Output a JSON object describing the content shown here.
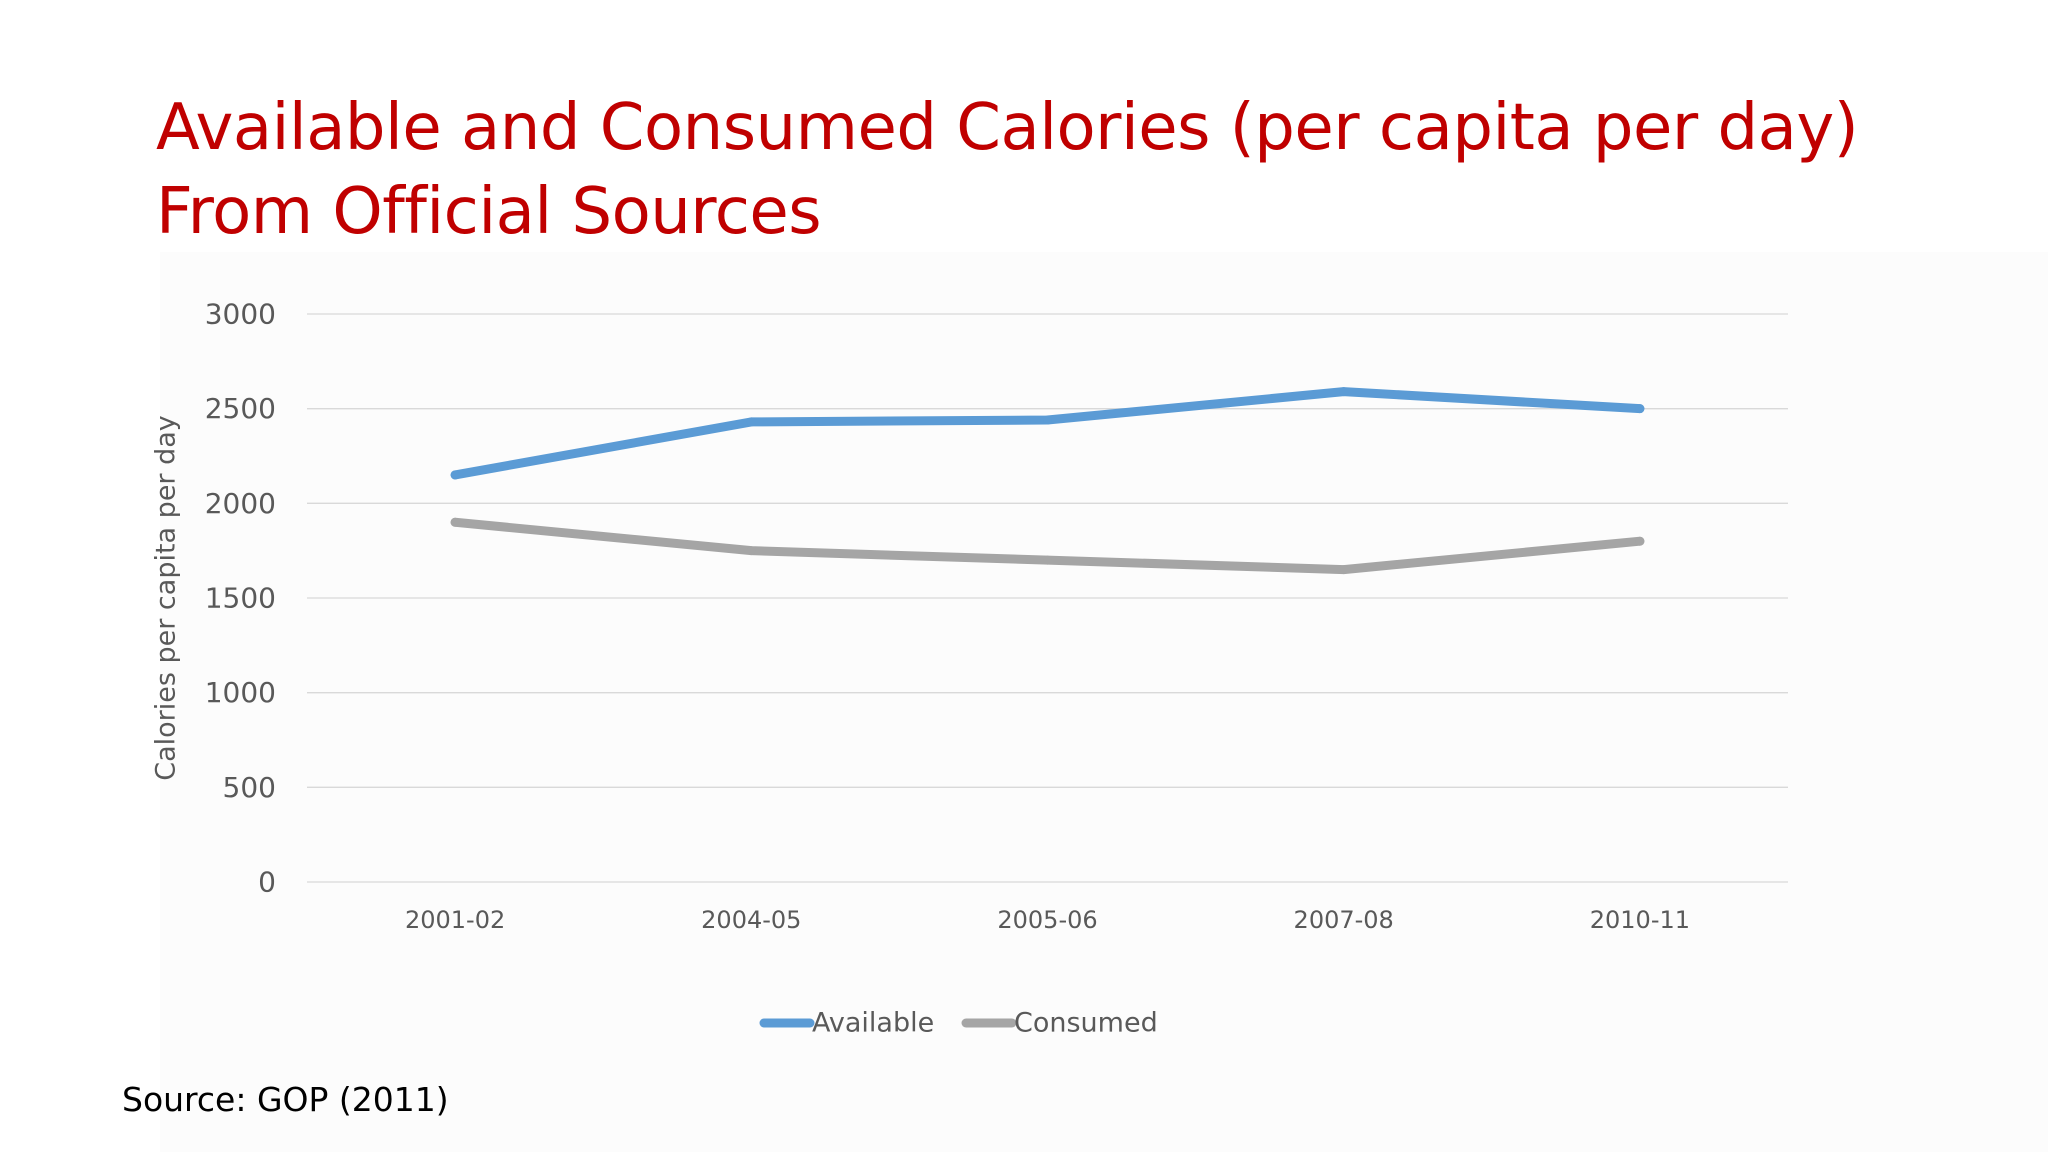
{
  "slide": {
    "title_line1": "Available and Consumed Calories (per capita per day)",
    "title_line2": "From Official Sources",
    "source": "Source: GOP (2011)",
    "title_color": "#c00000"
  },
  "chart_data": {
    "type": "line",
    "categories": [
      "2001-02",
      "2004-05",
      "2005-06",
      "2007-08",
      "2010-11"
    ],
    "series": [
      {
        "name": "Available",
        "color": "#5b9bd5",
        "values": [
          2150,
          2430,
          2440,
          2590,
          2500
        ]
      },
      {
        "name": "Consumed",
        "color": "#a5a5a5",
        "values": [
          1900,
          1750,
          1700,
          1650,
          1800
        ]
      }
    ],
    "ylabel": "Calories per capita per day",
    "ylim": [
      0,
      3000
    ],
    "yticks": [
      0,
      500,
      1000,
      1500,
      2000,
      2500,
      3000
    ],
    "grid": true,
    "legend": "bottom"
  }
}
